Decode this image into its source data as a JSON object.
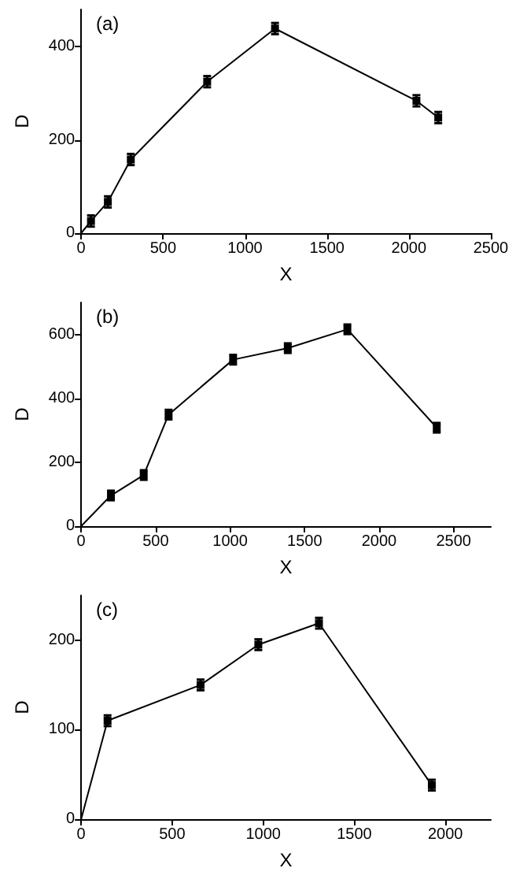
{
  "chart_data": [
    {
      "type": "line",
      "title": "(a)",
      "xlabel": "X",
      "ylabel": "D",
      "x": [
        0,
        60,
        163,
        303,
        769,
        1183,
        2046,
        2179
      ],
      "values": [
        0,
        26,
        67,
        158,
        325,
        439,
        284,
        248
      ],
      "errors": [
        null,
        12,
        12,
        12,
        12,
        12,
        12,
        12
      ],
      "xlim": [
        0,
        2500
      ],
      "xticks": [
        0,
        500,
        1000,
        1500,
        2000,
        2500
      ],
      "ylim": [
        0,
        480
      ],
      "yticks": [
        0,
        200,
        400
      ],
      "marker": "square",
      "line_style": "solid",
      "grid": false
    },
    {
      "type": "line",
      "title": "(b)",
      "xlabel": "X",
      "ylabel": "D",
      "x": [
        0,
        200,
        420,
        587,
        1020,
        1387,
        1787,
        2387
      ],
      "values": [
        0,
        96,
        160,
        349,
        521,
        557,
        616,
        308
      ],
      "errors": [
        null,
        15,
        15,
        15,
        15,
        15,
        15,
        15
      ],
      "xlim": [
        0,
        2750
      ],
      "xticks": [
        0,
        500,
        1000,
        1500,
        2000,
        2500
      ],
      "ylim": [
        0,
        700
      ],
      "yticks": [
        0,
        200,
        400,
        600
      ],
      "marker": "square",
      "line_style": "solid",
      "grid": false
    },
    {
      "type": "line",
      "title": "(c)",
      "xlabel": "X",
      "ylabel": "D",
      "x": [
        0,
        145,
        656,
        973,
        1306,
        1926
      ],
      "values": [
        0,
        110,
        150,
        195,
        219,
        38
      ],
      "errors": [
        null,
        6,
        6,
        6,
        6,
        6
      ],
      "xlim": [
        0,
        2250
      ],
      "xticks": [
        0,
        500,
        1000,
        1500,
        2000
      ],
      "ylim": [
        0,
        250
      ],
      "yticks": [
        0,
        100,
        200
      ],
      "marker": "square",
      "line_style": "solid",
      "grid": false
    }
  ]
}
